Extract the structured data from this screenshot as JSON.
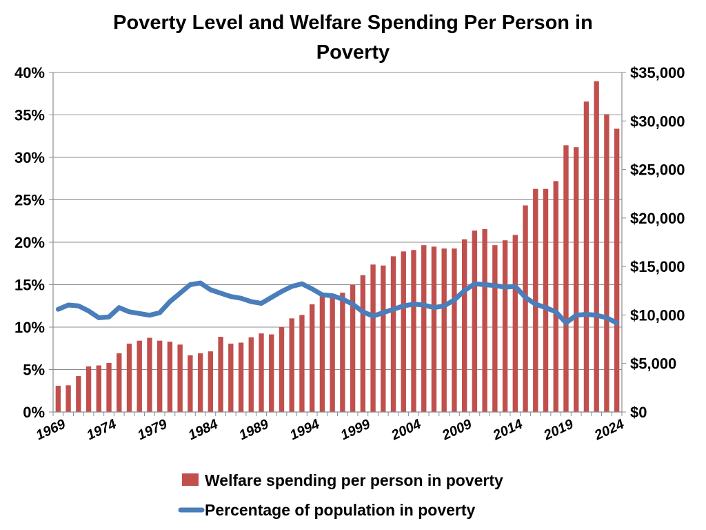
{
  "chart_data": {
    "type": "bar+line",
    "title_lines": [
      "Poverty Level and Welfare Spending Per Person in",
      "Poverty"
    ],
    "years": [
      1969,
      1970,
      1971,
      1972,
      1973,
      1974,
      1975,
      1976,
      1977,
      1978,
      1979,
      1980,
      1981,
      1982,
      1983,
      1984,
      1985,
      1986,
      1987,
      1988,
      1989,
      1990,
      1991,
      1992,
      1993,
      1994,
      1995,
      1996,
      1997,
      1998,
      1999,
      2000,
      2001,
      2002,
      2003,
      2004,
      2005,
      2006,
      2007,
      2008,
      2009,
      2010,
      2011,
      2012,
      2013,
      2014,
      2015,
      2016,
      2017,
      2018,
      2019,
      2020,
      2021,
      2022,
      2023,
      2024
    ],
    "x_tick_labels": [
      "1969",
      "1974",
      "1979",
      "1984",
      "1989",
      "1994",
      "1999",
      "2004",
      "2009",
      "2014",
      "2019",
      "2024"
    ],
    "series": [
      {
        "name": "Welfare spending per person in poverty",
        "type": "bar",
        "axis": "right",
        "color": "#c0504d",
        "values": [
          2700,
          2750,
          3700,
          4700,
          4800,
          5050,
          6050,
          7050,
          7350,
          7650,
          7350,
          7250,
          6950,
          5850,
          6050,
          6250,
          7750,
          7050,
          7150,
          7700,
          8100,
          8000,
          8750,
          9650,
          10000,
          11100,
          12000,
          12000,
          12300,
          13100,
          14100,
          15200,
          15100,
          16050,
          16550,
          16700,
          17200,
          17050,
          16850,
          16850,
          17800,
          18700,
          18850,
          17200,
          17700,
          18250,
          21300,
          23000,
          23000,
          23800,
          27500,
          27300,
          32000,
          34100,
          30700,
          29200
        ]
      },
      {
        "name": "Percentage of population in poverty",
        "type": "line",
        "axis": "left",
        "color": "#4a7ebb",
        "values": [
          12.1,
          12.6,
          12.5,
          11.9,
          11.1,
          11.2,
          12.3,
          11.8,
          11.6,
          11.4,
          11.7,
          13.0,
          14.0,
          15.0,
          15.2,
          14.4,
          14.0,
          13.6,
          13.4,
          13.0,
          12.8,
          13.5,
          14.2,
          14.8,
          15.1,
          14.5,
          13.8,
          13.7,
          13.3,
          12.7,
          11.8,
          11.3,
          11.7,
          12.1,
          12.5,
          12.7,
          12.6,
          12.3,
          12.5,
          13.2,
          14.3,
          15.1,
          15.0,
          14.9,
          14.7,
          14.8,
          13.5,
          12.7,
          12.3,
          11.8,
          10.5,
          11.4,
          11.5,
          11.4,
          11.1,
          10.5
        ]
      }
    ],
    "y_left": {
      "min": 0,
      "max": 40,
      "step": 5,
      "suffix": "%"
    },
    "y_right": {
      "min": 0,
      "max": 35000,
      "step": 5000,
      "prefix": "$"
    },
    "gridlines": true,
    "legend_position": "bottom"
  }
}
